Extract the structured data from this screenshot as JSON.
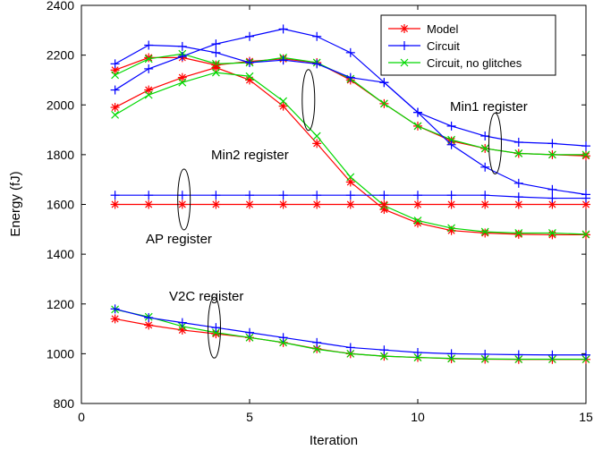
{
  "chart_data": {
    "type": "line",
    "xlabel": "Iteration",
    "ylabel": "Energy (fJ)",
    "xlim": [
      0,
      15
    ],
    "ylim": [
      800,
      2400
    ],
    "xticks": [
      0,
      5,
      10,
      15
    ],
    "yticks": [
      800,
      1000,
      1200,
      1400,
      1600,
      1800,
      2000,
      2200,
      2400
    ],
    "grid": false,
    "legend_position": "top-right",
    "x": [
      1,
      2,
      3,
      4,
      5,
      6,
      7,
      8,
      9,
      10,
      11,
      12,
      13,
      14,
      15
    ],
    "legend": [
      {
        "name": "Model",
        "color": "#ff0000",
        "marker": "asterisk"
      },
      {
        "name": "Circuit",
        "color": "#0000ff",
        "marker": "plus"
      },
      {
        "name": "Circuit, no glitches",
        "color": "#00d800",
        "marker": "cross"
      }
    ],
    "groups": [
      {
        "label": "Min1 register",
        "series": [
          {
            "name": "Model",
            "values": [
              2140,
              2190,
              2190,
              2160,
              2175,
              2185,
              2170,
              2100,
              2005,
              1915,
              1855,
              1825,
              1805,
              1800,
              1795
            ]
          },
          {
            "name": "Circuit",
            "values": [
              2165,
              2240,
              2235,
              2210,
              2170,
              2180,
              2165,
              2110,
              2090,
              1970,
              1915,
              1875,
              1850,
              1845,
              1835
            ]
          },
          {
            "name": "Circuit, no glitches",
            "values": [
              2120,
              2185,
              2205,
              2165,
              2170,
              2190,
              2170,
              2105,
              2005,
              1915,
              1860,
              1825,
              1805,
              1800,
              1800
            ]
          }
        ]
      },
      {
        "label": "Min2 register",
        "series": [
          {
            "name": "Model",
            "values": [
              1990,
              2060,
              2110,
              2150,
              2100,
              1995,
              1845,
              1690,
              1580,
              1525,
              1495,
              1485,
              1480,
              1478,
              1478
            ]
          },
          {
            "name": "Circuit",
            "values": [
              2060,
              2145,
              2195,
              2245,
              2275,
              2305,
              2275,
              2210,
              2090,
              1970,
              1840,
              1750,
              1685,
              1660,
              1640
            ]
          },
          {
            "name": "Circuit, no glitches",
            "values": [
              1960,
              2040,
              2090,
              2130,
              2115,
              2015,
              1875,
              1710,
              1595,
              1535,
              1505,
              1490,
              1485,
              1485,
              1480
            ]
          }
        ]
      },
      {
        "label": "AP register",
        "series": [
          {
            "name": "Model",
            "values": [
              1600,
              1600,
              1600,
              1600,
              1600,
              1600,
              1600,
              1600,
              1600,
              1600,
              1600,
              1600,
              1600,
              1600,
              1600
            ]
          },
          {
            "name": "Circuit",
            "values": [
              1637,
              1637,
              1637,
              1637,
              1637,
              1637,
              1637,
              1637,
              1637,
              1637,
              1637,
              1637,
              1630,
              1625,
              1625
            ]
          }
        ]
      },
      {
        "label": "V2C register",
        "series": [
          {
            "name": "Model",
            "values": [
              1140,
              1115,
              1095,
              1080,
              1065,
              1045,
              1020,
              1000,
              990,
              985,
              980,
              978,
              977,
              977,
              977
            ]
          },
          {
            "name": "Circuit",
            "values": [
              1180,
              1145,
              1125,
              1105,
              1085,
              1065,
              1045,
              1025,
              1015,
              1005,
              1000,
              998,
              996,
              995,
              995
            ]
          },
          {
            "name": "Circuit, no glitches",
            "values": [
              1178,
              1148,
              1110,
              1085,
              1065,
              1045,
              1018,
              1000,
              990,
              985,
              981,
              979,
              978,
              978,
              978
            ]
          }
        ]
      }
    ],
    "annotations": [
      "Min1 register",
      "Min2 register",
      "AP register",
      "V2C register"
    ]
  }
}
